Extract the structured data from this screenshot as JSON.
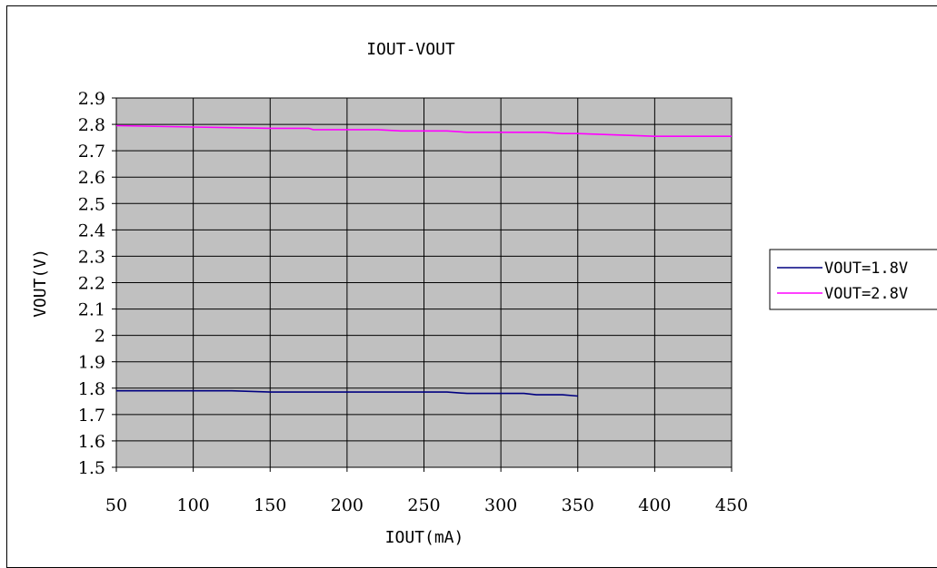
{
  "chart_data": {
    "type": "line",
    "title": "IOUT-VOUT",
    "xlabel": "IOUT(mA)",
    "ylabel": "VOUT(V)",
    "xlim": [
      50,
      450
    ],
    "ylim": [
      1.5,
      2.9
    ],
    "x_ticks": [
      "50",
      "100",
      "150",
      "200",
      "250",
      "300",
      "350",
      "400",
      "450"
    ],
    "y_ticks": [
      "1.5",
      "1.6",
      "1.7",
      "1.8",
      "1.9",
      "2",
      "2.1",
      "2.2",
      "2.3",
      "2.4",
      "2.5",
      "2.6",
      "2.7",
      "2.8",
      "2.9"
    ],
    "grid": true,
    "plot_background": "#C0C0C0",
    "legend_position": "right",
    "series": [
      {
        "name": "VOUT=1.8V",
        "color": "#000080",
        "x": [
          50,
          75,
          100,
          125,
          150,
          175,
          200,
          225,
          250,
          265,
          278,
          300,
          315,
          323,
          340,
          350
        ],
        "y": [
          1.79,
          1.79,
          1.79,
          1.79,
          1.785,
          1.785,
          1.785,
          1.785,
          1.785,
          1.785,
          1.78,
          1.78,
          1.78,
          1.775,
          1.775,
          1.77
        ]
      },
      {
        "name": "VOUT=2.8V",
        "color": "#FF00FF",
        "x": [
          50,
          100,
          150,
          175,
          178,
          220,
          235,
          265,
          278,
          300,
          328,
          340,
          350,
          400,
          450
        ],
        "y": [
          2.795,
          2.79,
          2.785,
          2.785,
          2.78,
          2.78,
          2.775,
          2.775,
          2.77,
          2.77,
          2.77,
          2.765,
          2.765,
          2.755,
          2.755
        ]
      }
    ]
  }
}
